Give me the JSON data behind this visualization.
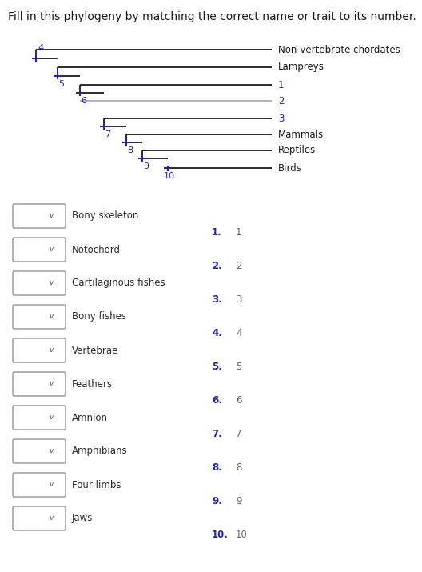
{
  "title": "Fill in this phylogeny by matching the correct name or trait to its number.",
  "title_fontsize": 10,
  "background_color": "#ffffff",
  "tree_color": "#1a1a1a",
  "node_color": "#2222bb",
  "gray_line_color": "#b0b0b0",
  "label_color": "#1a1a1a",
  "leaf_labels": [
    "Non-vertebrate chordates",
    "Lampreys",
    "1",
    "2",
    "3",
    "Mammals",
    "Reptiles",
    "Birds"
  ],
  "leaf_label_colors": [
    "#1a1a1a",
    "#1a1a1a",
    "#2222bb",
    "#2222bb",
    "#2222bb",
    "#1a1a1a",
    "#1a1a1a",
    "#1a1a1a"
  ],
  "left_items": [
    "Bony skeleton",
    "Notochord",
    "Cartilaginous fishes",
    "Bony fishes",
    "Vertebrae",
    "Feathers",
    "Amnion",
    "Amphibians",
    "Four limbs",
    "Jaws"
  ],
  "left_item_color": "#2d2d2d",
  "num_bold_color": "#2222bb",
  "num_plain_color": "#555555"
}
